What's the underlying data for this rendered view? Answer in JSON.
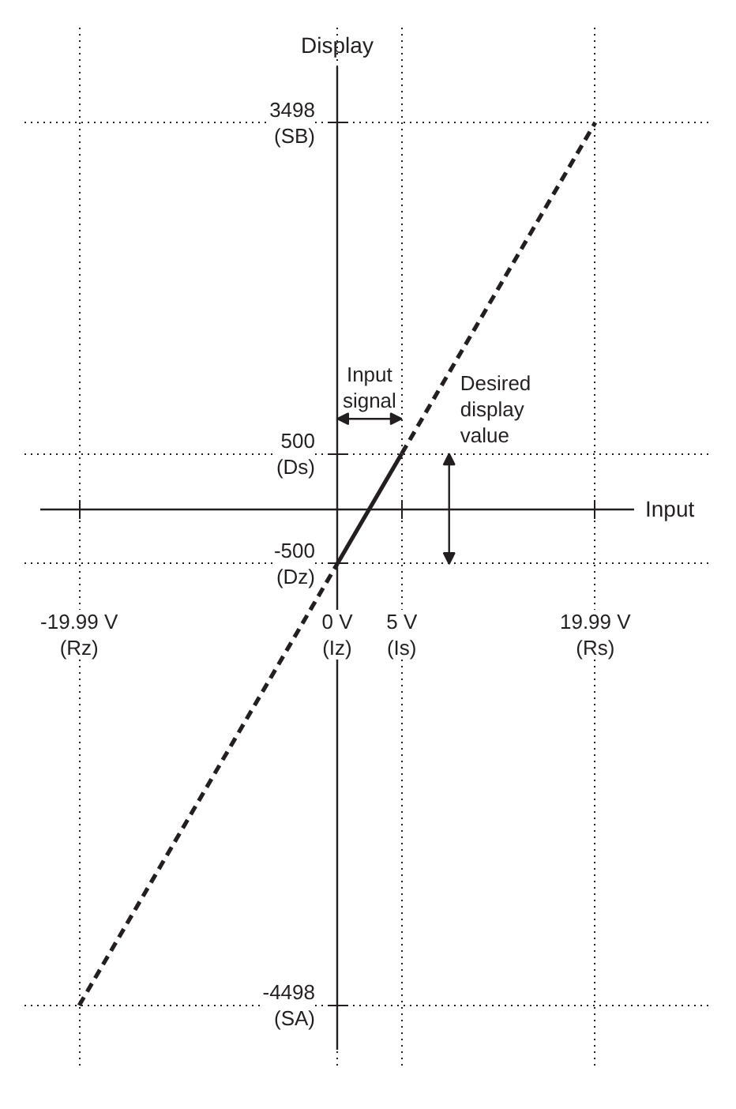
{
  "chart_data": {
    "type": "line",
    "xlabel": "Input",
    "ylabel": "Display",
    "xlim": [
      -23,
      23
    ],
    "ylim": [
      -4900,
      4000
    ],
    "xticks": [
      {
        "value": -19.99,
        "label": "-19.99 V (Rz)"
      },
      {
        "value": 0,
        "label": "0 V (Iz)"
      },
      {
        "value": 5,
        "label": "5 V (Is)"
      },
      {
        "value": 19.99,
        "label": "19.99 V (Rs)"
      }
    ],
    "yticks": [
      {
        "value": -4498,
        "label": "-4498 (SA)"
      },
      {
        "value": -500,
        "label": "-500 (Dz)"
      },
      {
        "value": 500,
        "label": "500 (Ds)"
      },
      {
        "value": 3498,
        "label": "3498 (SB)"
      }
    ],
    "grid": true,
    "series": [
      {
        "x": [
          0,
          5
        ],
        "values": [
          -500,
          500
        ],
        "color": "#231f20",
        "line_style": "solid"
      },
      {
        "x": [
          -19.99,
          0
        ],
        "values": [
          -4498,
          -500
        ],
        "color": "#231f20",
        "line_style": "dashed"
      },
      {
        "x": [
          5,
          19.99
        ],
        "values": [
          500,
          3498
        ],
        "color": "#231f20",
        "line_style": "dashed"
      }
    ],
    "annotations": [
      "Input signal",
      "Desired display value"
    ]
  }
}
